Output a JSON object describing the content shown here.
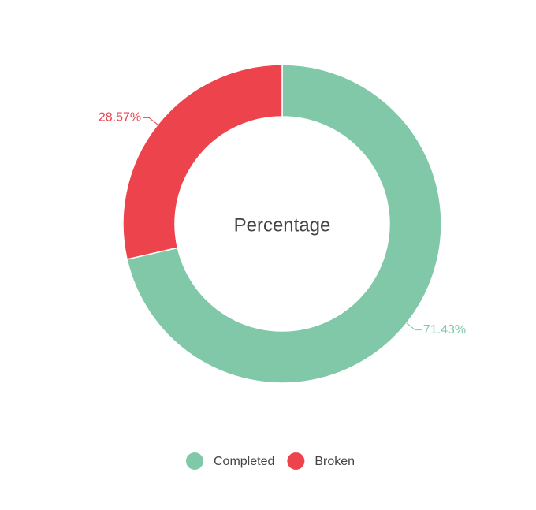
{
  "chart_data": {
    "type": "pie",
    "title": "Percentage",
    "categories": [
      "Completed",
      "Broken"
    ],
    "values": [
      71.43,
      28.57
    ],
    "value_labels": [
      "71.43%",
      "28.57%"
    ],
    "colors": [
      "#80c8a8",
      "#ec434c"
    ],
    "legend": "bottom"
  }
}
